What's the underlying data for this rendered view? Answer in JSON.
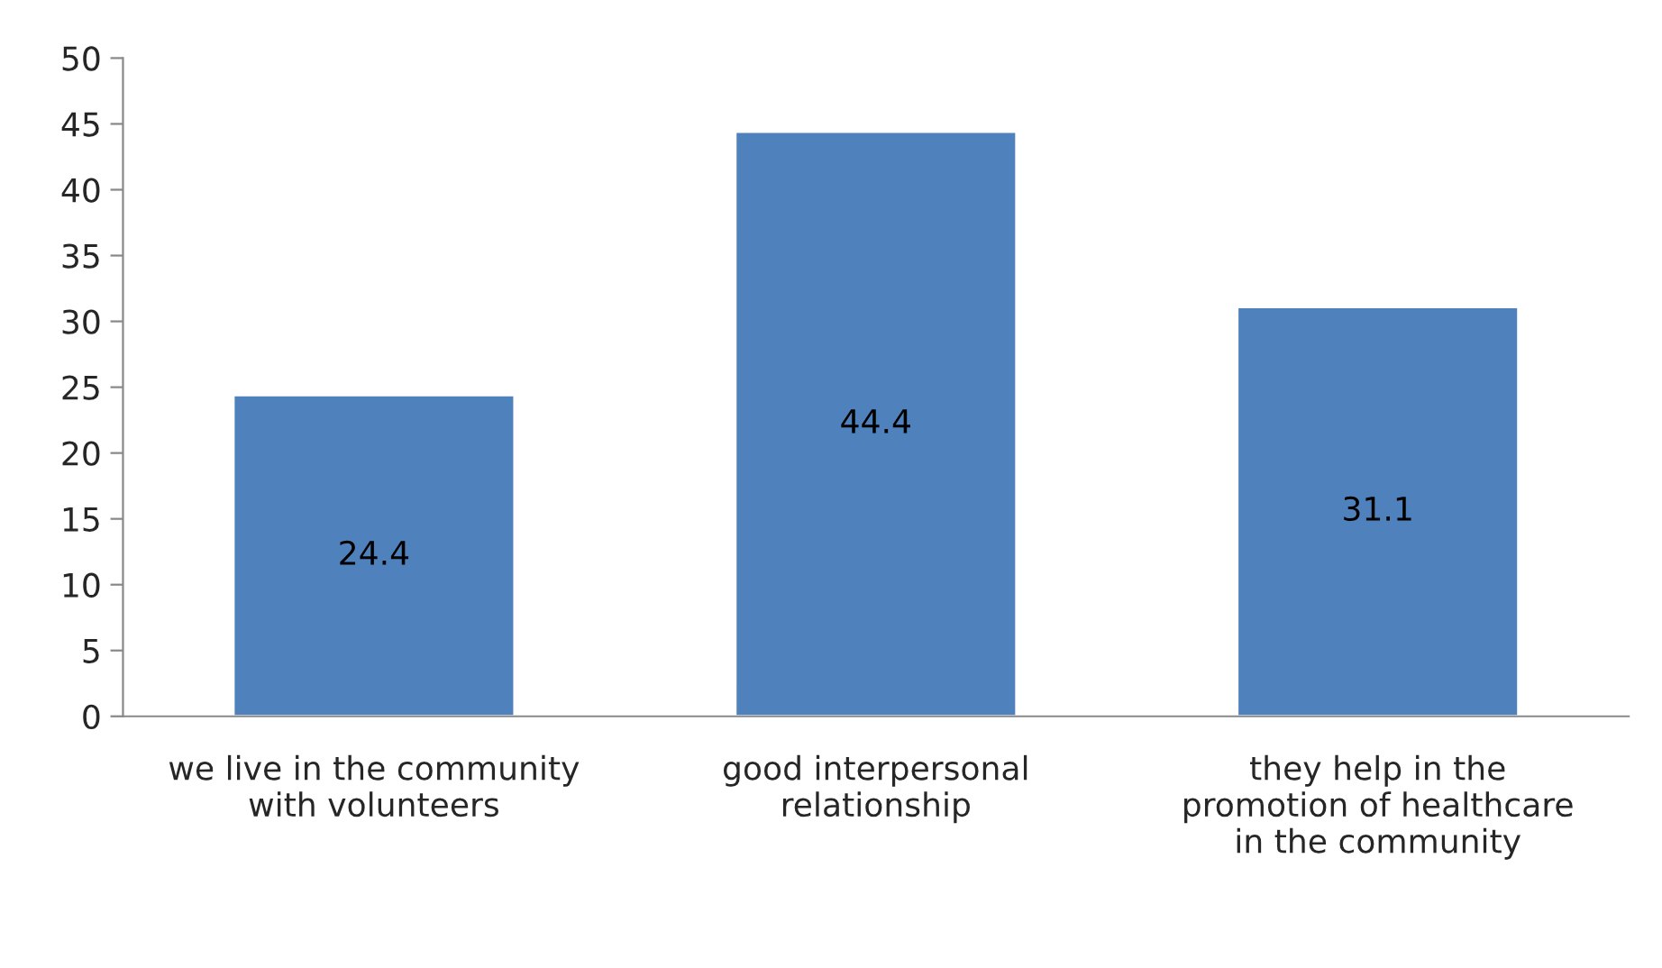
{
  "chart_data": {
    "type": "bar",
    "categories": [
      "we live in the community\nwith volunteers",
      "good interpersonal\nrelationship",
      "they help in the\npromotion of healthcare\nin the community"
    ],
    "values": [
      24.4,
      44.4,
      31.1
    ],
    "color": "#4f81bd",
    "ylim": [
      0,
      50
    ],
    "yticks": [
      0,
      5,
      10,
      15,
      20,
      25,
      30,
      35,
      40,
      45,
      50
    ],
    "grid": false,
    "data_labels": true
  }
}
